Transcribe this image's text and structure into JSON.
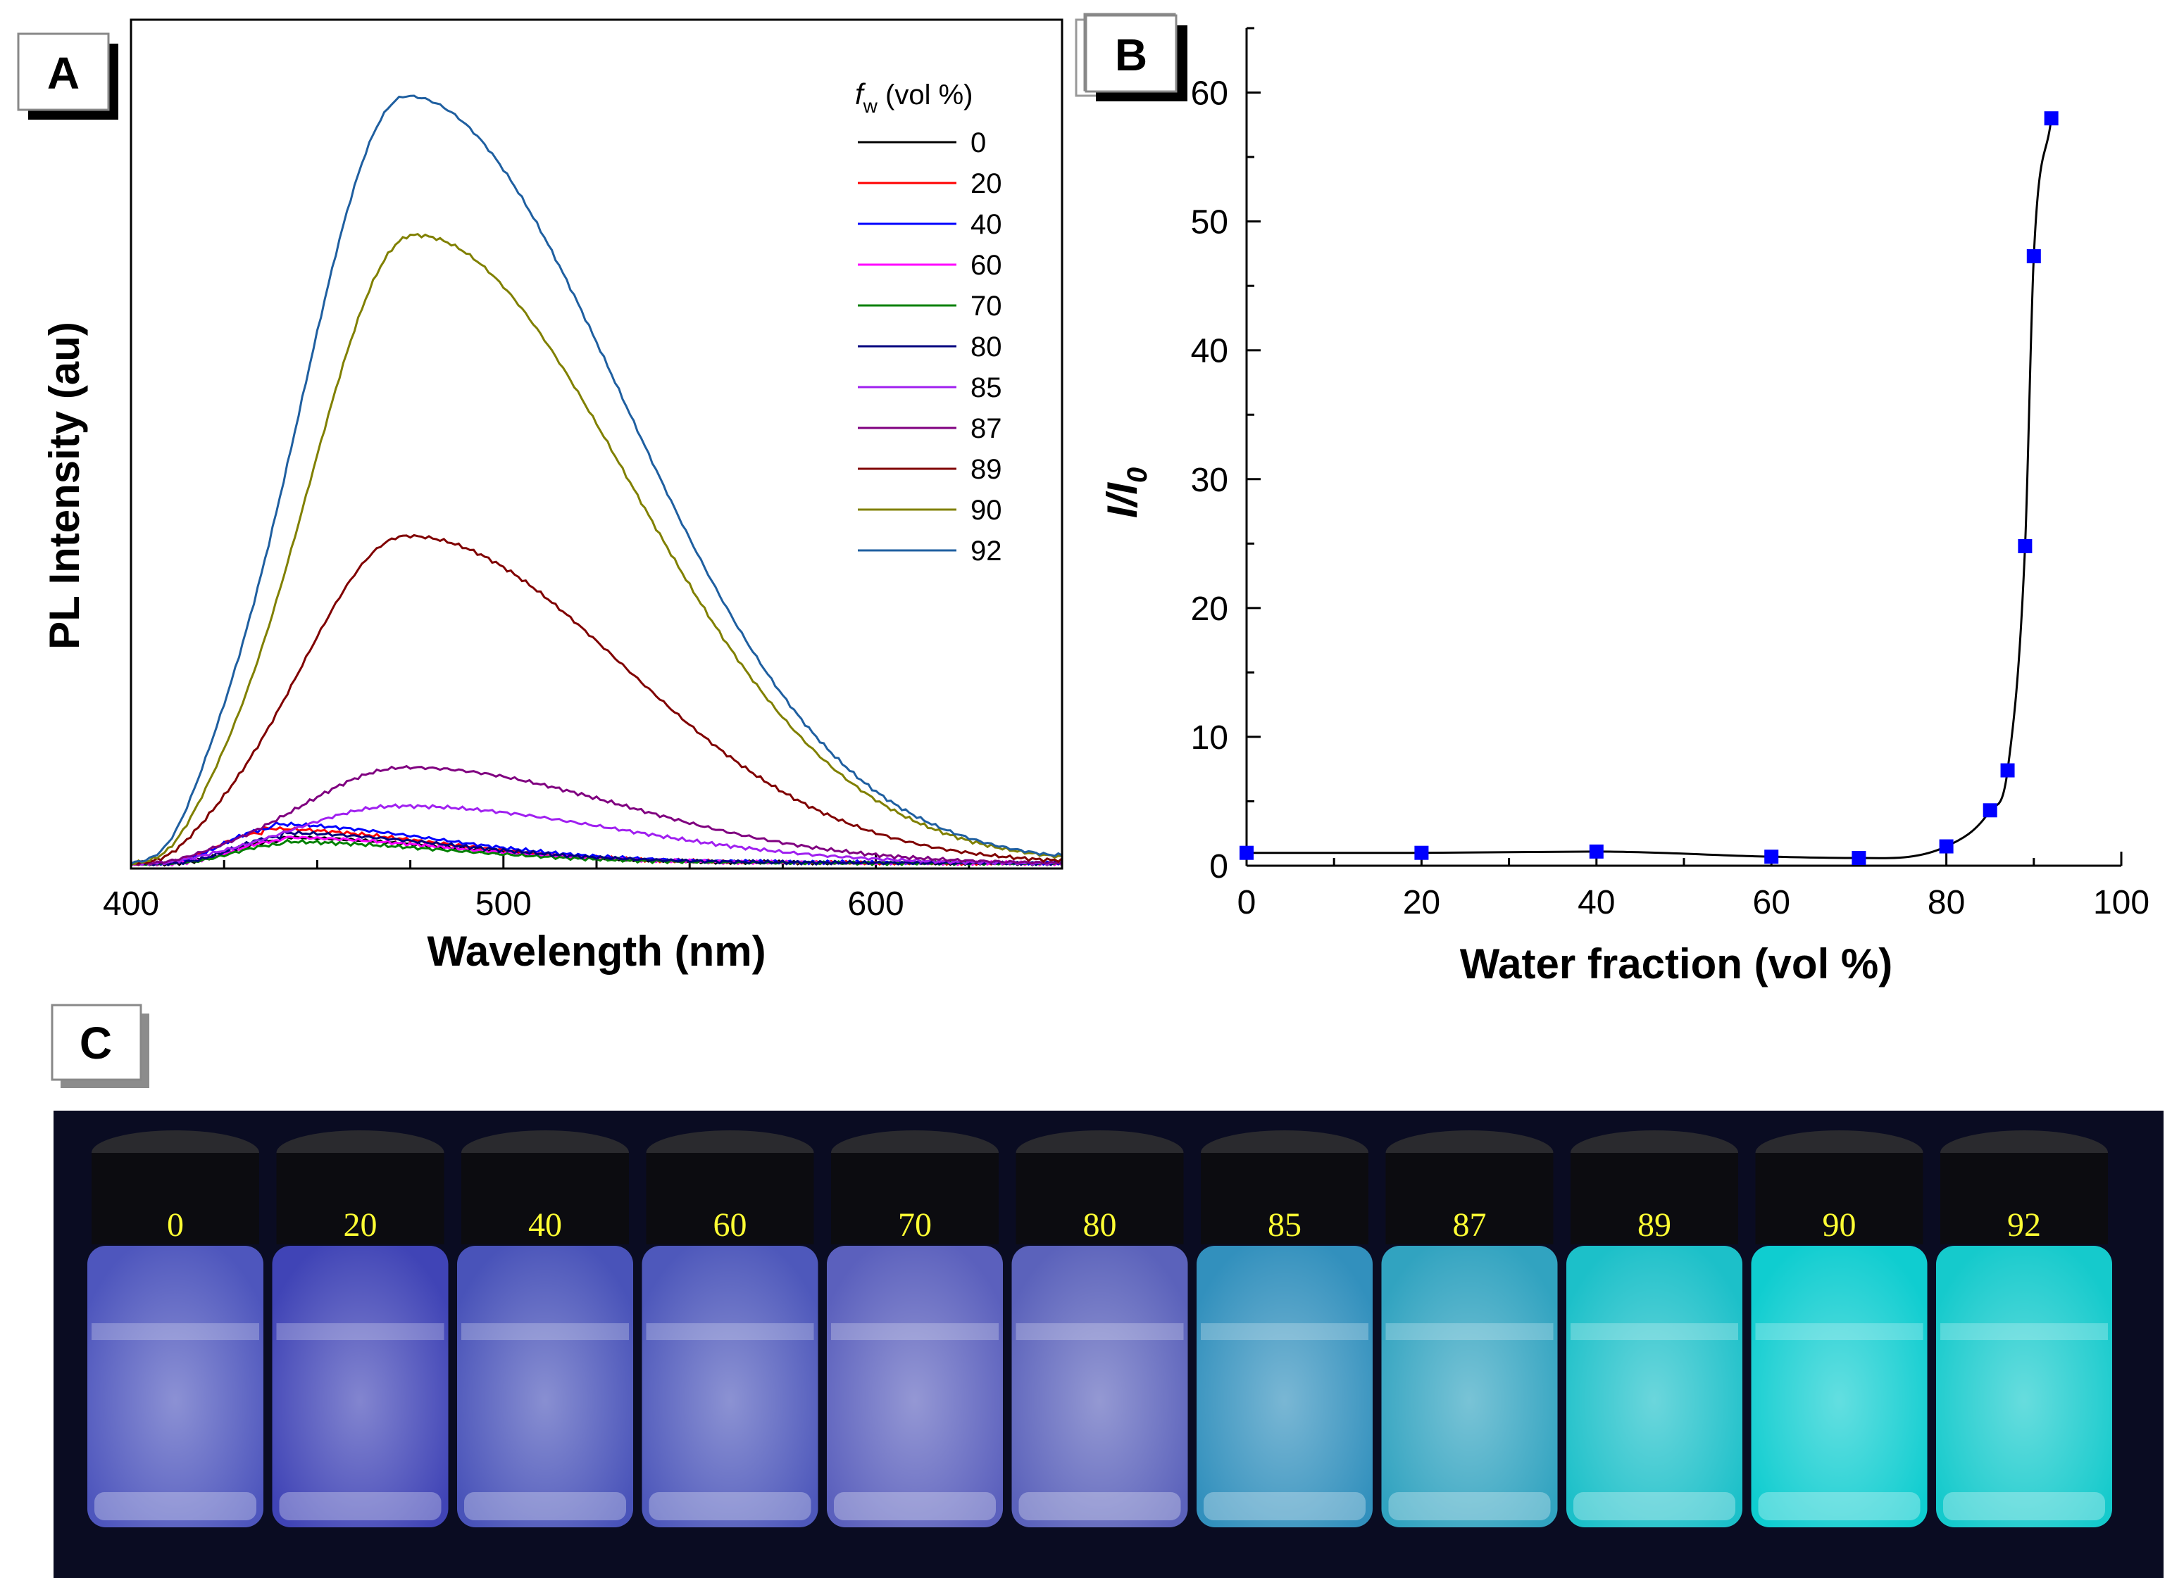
{
  "chart_data": [
    {
      "type": "line",
      "panel_label": "A",
      "xlabel": "Wavelength (nm)",
      "ylabel": "PL Intensity (au)",
      "xlim": [
        400,
        650
      ],
      "ylim": [
        0,
        1.1
      ],
      "x_ticks": [
        400,
        500,
        600
      ],
      "y_ticks_shown": false,
      "legend": {
        "title_symbol": "f",
        "title_subscript": "w",
        "title_rest": " (vol %)",
        "placement": "top-right"
      },
      "series": [
        {
          "name": "0",
          "color": "#000000",
          "peak": 0.03,
          "peak_x": 440
        },
        {
          "name": "20",
          "color": "#ff0000",
          "peak": 0.04,
          "peak_x": 435
        },
        {
          "name": "40",
          "color": "#0000ff",
          "peak": 0.045,
          "peak_x": 437
        },
        {
          "name": "60",
          "color": "#ff00ff",
          "peak": 0.03,
          "peak_x": 440
        },
        {
          "name": "70",
          "color": "#008000",
          "peak": 0.025,
          "peak_x": 440
        },
        {
          "name": "80",
          "color": "#00007f",
          "peak": 0.035,
          "peak_x": 440
        },
        {
          "name": "85",
          "color": "#a020f0",
          "peak": 0.075,
          "peak_x": 472
        },
        {
          "name": "87",
          "color": "#800080",
          "peak": 0.125,
          "peak_x": 474
        },
        {
          "name": "89",
          "color": "#800000",
          "peak": 0.425,
          "peak_x": 474
        },
        {
          "name": "90",
          "color": "#808000",
          "peak": 0.815,
          "peak_x": 476
        },
        {
          "name": "92",
          "color": "#1f5fa0",
          "peak": 0.995,
          "peak_x": 474
        }
      ]
    },
    {
      "type": "scatter",
      "panel_label": "B",
      "xlabel": "Water fraction (vol %)",
      "ylabel_main": "I/I",
      "ylabel_sub": "0",
      "xlim": [
        0,
        100
      ],
      "ylim": [
        0,
        65
      ],
      "x_ticks": [
        0,
        20,
        40,
        60,
        80,
        100
      ],
      "y_ticks": [
        0,
        10,
        20,
        30,
        40,
        50,
        60
      ],
      "marker_color": "#0000ff",
      "line_color": "#000000",
      "x": [
        0,
        20,
        40,
        60,
        70,
        80,
        85,
        87,
        89,
        90,
        92
      ],
      "y": [
        1.0,
        1.0,
        1.1,
        0.7,
        0.6,
        1.5,
        4.3,
        7.4,
        24.8,
        47.3,
        58.0
      ]
    }
  ],
  "photo": {
    "panel_label": "C",
    "vials": [
      {
        "label": "0",
        "glow": "#5a64d8"
      },
      {
        "label": "20",
        "glow": "#4a4fd0"
      },
      {
        "label": "40",
        "glow": "#5560d4"
      },
      {
        "label": "60",
        "glow": "#5a66d6"
      },
      {
        "label": "70",
        "glow": "#6a70d8"
      },
      {
        "label": "80",
        "glow": "#6a72d6"
      },
      {
        "label": "85",
        "glow": "#3aa8d8"
      },
      {
        "label": "87",
        "glow": "#38bedc"
      },
      {
        "label": "89",
        "glow": "#20e0e6"
      },
      {
        "label": "90",
        "glow": "#10f0ee"
      },
      {
        "label": "92",
        "glow": "#18ecea"
      }
    ]
  }
}
